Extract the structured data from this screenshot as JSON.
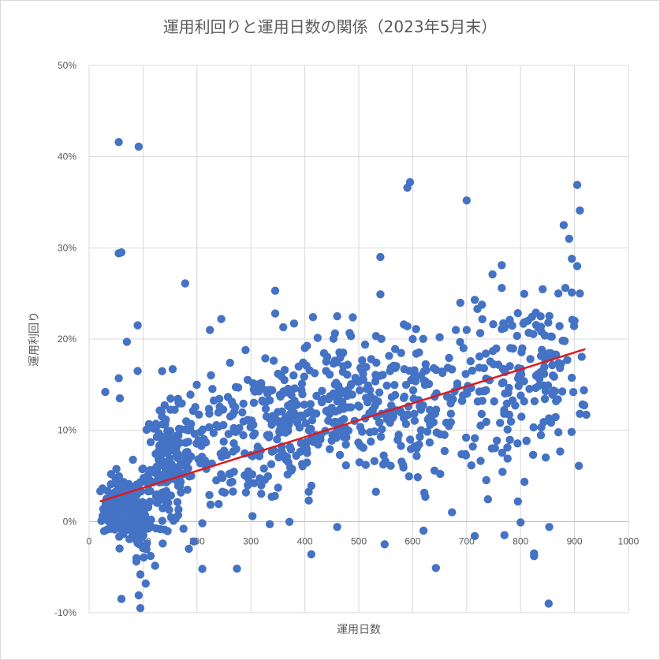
{
  "chart_data": {
    "type": "scatter",
    "title": "運用利回りと運用日数の関係（2023年5月末）",
    "xlabel": "運用日数",
    "ylabel": "運用利回り",
    "xlim": [
      0,
      1000
    ],
    "ylim": [
      -10,
      50
    ],
    "x_ticks": [
      0,
      100,
      200,
      300,
      400,
      500,
      600,
      700,
      800,
      900,
      1000
    ],
    "y_ticks": [
      "-10%",
      "0%",
      "10%",
      "20%",
      "30%",
      "40%",
      "50%"
    ],
    "grid": true,
    "legend": "none",
    "colors": {
      "points": "#4472c4",
      "trend": "#e0191c",
      "grid": "#d9d9d9"
    },
    "trendline": {
      "x": [
        20,
        920
      ],
      "y": [
        2.2,
        18.9
      ]
    },
    "outliers": [
      {
        "x": 55,
        "y": 41.6
      },
      {
        "x": 92,
        "y": 41.1
      },
      {
        "x": 55,
        "y": 29.4
      },
      {
        "x": 60,
        "y": 29.5
      },
      {
        "x": 90,
        "y": 21.5
      },
      {
        "x": 70,
        "y": 19.7
      },
      {
        "x": 178,
        "y": 26.1
      },
      {
        "x": 90,
        "y": 16.5
      },
      {
        "x": 55,
        "y": 15.7
      },
      {
        "x": 57,
        "y": 13.5
      },
      {
        "x": 30,
        "y": 14.2
      },
      {
        "x": 155,
        "y": 16.7
      },
      {
        "x": 224,
        "y": 21.0
      },
      {
        "x": 245,
        "y": 22.2
      },
      {
        "x": 345,
        "y": 25.3
      },
      {
        "x": 290,
        "y": 18.8
      },
      {
        "x": 540,
        "y": 29.0
      },
      {
        "x": 540,
        "y": 24.9
      },
      {
        "x": 590,
        "y": 36.6
      },
      {
        "x": 595,
        "y": 37.2
      },
      {
        "x": 700,
        "y": 35.2
      },
      {
        "x": 765,
        "y": 28.1
      },
      {
        "x": 748,
        "y": 27.1
      },
      {
        "x": 765,
        "y": 25.6
      },
      {
        "x": 880,
        "y": 32.5
      },
      {
        "x": 890,
        "y": 31.0
      },
      {
        "x": 905,
        "y": 36.9
      },
      {
        "x": 910,
        "y": 34.1
      },
      {
        "x": 895,
        "y": 28.8
      },
      {
        "x": 905,
        "y": 28.0
      },
      {
        "x": 910,
        "y": 25.0
      },
      {
        "x": 870,
        "y": 25.0
      },
      {
        "x": 883,
        "y": 25.6
      },
      {
        "x": 895,
        "y": 25.1
      },
      {
        "x": 715,
        "y": 24.3
      },
      {
        "x": 720,
        "y": 23.3
      },
      {
        "x": 60,
        "y": -8.5
      },
      {
        "x": 95,
        "y": -9.5
      },
      {
        "x": 92,
        "y": -8.1
      },
      {
        "x": 95,
        "y": -5.8
      },
      {
        "x": 105,
        "y": -6.8
      },
      {
        "x": 210,
        "y": -5.2
      },
      {
        "x": 185,
        "y": -3.0
      },
      {
        "x": 412,
        "y": -3.6
      },
      {
        "x": 548,
        "y": -2.5
      },
      {
        "x": 643,
        "y": -5.1
      },
      {
        "x": 715,
        "y": -1.6
      },
      {
        "x": 770,
        "y": -1.5
      },
      {
        "x": 825,
        "y": -3.5
      },
      {
        "x": 825,
        "y": -3.8
      },
      {
        "x": 852,
        "y": -9.0
      },
      {
        "x": 853,
        "y": -0.6
      },
      {
        "x": 800,
        "y": -0.1
      },
      {
        "x": 795,
        "y": 2.2
      },
      {
        "x": 908,
        "y": 6.1
      },
      {
        "x": 910,
        "y": 11.8
      },
      {
        "x": 460,
        "y": 22.5
      },
      {
        "x": 415,
        "y": 22.4
      },
      {
        "x": 345,
        "y": 22.8
      },
      {
        "x": 380,
        "y": 21.7
      },
      {
        "x": 360,
        "y": 21.3
      },
      {
        "x": 590,
        "y": 21.4
      },
      {
        "x": 600,
        "y": 20.0
      },
      {
        "x": 650,
        "y": 20.2
      },
      {
        "x": 680,
        "y": 21.0
      },
      {
        "x": 700,
        "y": 21.0
      },
      {
        "x": 780,
        "y": 22.1
      },
      {
        "x": 815,
        "y": 20.7
      },
      {
        "x": 845,
        "y": 20.4
      },
      {
        "x": 900,
        "y": 22.0
      },
      {
        "x": 335,
        "y": -0.3
      },
      {
        "x": 460,
        "y": -0.6
      },
      {
        "x": 620,
        "y": -1.0
      },
      {
        "x": 210,
        "y": -0.2
      },
      {
        "x": 175,
        "y": -0.8
      },
      {
        "x": 140,
        "y": -0.9
      }
    ],
    "clusters": [
      {
        "x": 62,
        "sx": 18,
        "y": 1.5,
        "sy": 1.7,
        "n": 170
      },
      {
        "x": 95,
        "sx": 7,
        "y": 0.0,
        "sy": 1.9,
        "n": 70
      },
      {
        "x": 145,
        "sx": 22,
        "y": 6.0,
        "sy": 3.2,
        "n": 160
      },
      {
        "x": 215,
        "sx": 35,
        "y": 8.2,
        "sy": 3.2,
        "n": 60
      },
      {
        "x": 300,
        "sx": 45,
        "y": 9.3,
        "sy": 3.6,
        "n": 100
      },
      {
        "x": 380,
        "sx": 45,
        "y": 10.8,
        "sy": 3.8,
        "n": 110
      },
      {
        "x": 460,
        "sx": 45,
        "y": 13.5,
        "sy": 3.8,
        "n": 110
      },
      {
        "x": 550,
        "sx": 40,
        "y": 12.6,
        "sy": 4.2,
        "n": 90
      },
      {
        "x": 650,
        "sx": 45,
        "y": 12.0,
        "sy": 4.2,
        "n": 80
      },
      {
        "x": 760,
        "sx": 45,
        "y": 15.0,
        "sy": 4.0,
        "n": 80
      },
      {
        "x": 855,
        "sx": 35,
        "y": 16.2,
        "sy": 4.2,
        "n": 80
      }
    ]
  }
}
